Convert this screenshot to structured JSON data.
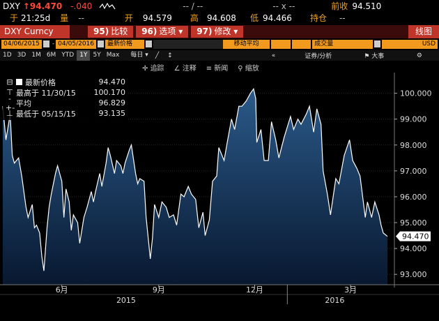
{
  "header": {
    "symbol": "DXY",
    "last": "94.470",
    "change": "-.040",
    "time_label": "于",
    "time": "21:25d",
    "volume_label": "量",
    "volume": "--",
    "prev_close_label": "前收",
    "prev_close": "94.510",
    "open_label": "开",
    "open": "94.579",
    "high_label": "高",
    "high": "94.608",
    "low_label": "低",
    "low": "94.466",
    "position_label": "持仓",
    "position": "--",
    "dash1": "-- / --",
    "dash2": "-- x --"
  },
  "titlebar": {
    "ticker": "DXY Curncy",
    "btn1_num": "95)",
    "btn1": "比较",
    "btn2_num": "96)",
    "btn2": "选项",
    "btn3_num": "97)",
    "btn3": "修改",
    "right": "线图"
  },
  "params": {
    "start": "04/06/2015",
    "end": "04/05/2016",
    "field": "最新价格",
    "ma": "移动平均",
    "vol": "成交量",
    "currency": "USD"
  },
  "ranges": [
    "1D",
    "3D",
    "1M",
    "6M",
    "YTD",
    "1Y",
    "5Y",
    "Max"
  ],
  "selected_range": "1Y",
  "freq": "每日",
  "tools_row": {
    "collapse": "«",
    "securities": "证券/分析",
    "events": "大事"
  },
  "chart_tools": [
    "追踪",
    "注释",
    "新闻",
    "缩放"
  ],
  "legend": {
    "last_label": "最新价格",
    "last_value": "94.470",
    "high_label": "最高于 11/30/15",
    "high_value": "100.170",
    "avg_label": "平均",
    "avg_value": "96.829",
    "low_label": "最低于 05/15/15",
    "low_value": "93.135"
  },
  "chart_data": {
    "type": "area",
    "title": "",
    "xlabel": "",
    "ylabel": "",
    "ylim": [
      92.6,
      100.8
    ],
    "y_ticks": [
      93.0,
      94.0,
      95.0,
      96.0,
      97.0,
      98.0,
      99.0,
      100.0
    ],
    "y_tick_labels": [
      "93.000",
      "94.000",
      "95.000",
      "96.000",
      "97.000",
      "98.000",
      "99.000",
      "100.000"
    ],
    "x_month_labels": [
      {
        "label": "6月",
        "date": "2015-06-01"
      },
      {
        "label": "9月",
        "date": "2015-09-01"
      },
      {
        "label": "12月",
        "date": "2015-12-01"
      },
      {
        "label": "3月",
        "date": "2016-03-01"
      }
    ],
    "x_year_labels": [
      {
        "label": "2015",
        "date": "2015-08-01"
      },
      {
        "label": "2016",
        "date": "2016-02-15"
      }
    ],
    "current_value_label": "94.470",
    "colors": {
      "fill_top": "#2b5a8a",
      "fill_bottom": "#081830",
      "line": "#ffffff"
    },
    "series": [
      {
        "x": [
          "2015-04-06",
          "2015-04-09",
          "2015-04-13",
          "2015-04-15",
          "2015-04-17",
          "2015-04-21",
          "2015-04-24",
          "2015-04-28",
          "2015-04-30",
          "2015-05-04",
          "2015-05-06",
          "2015-05-08",
          "2015-05-11",
          "2015-05-13",
          "2015-05-15",
          "2015-05-18",
          "2015-05-20",
          "2015-05-22",
          "2015-05-26",
          "2015-05-28",
          "2015-06-01",
          "2015-06-03",
          "2015-06-05",
          "2015-06-08",
          "2015-06-10",
          "2015-06-12",
          "2015-06-16",
          "2015-06-18",
          "2015-06-22",
          "2015-06-25",
          "2015-06-29",
          "2015-07-01",
          "2015-07-03",
          "2015-07-07",
          "2015-07-09",
          "2015-07-13",
          "2015-07-15",
          "2015-07-17",
          "2015-07-21",
          "2015-07-23",
          "2015-07-27",
          "2015-07-29",
          "2015-07-31",
          "2015-08-04",
          "2015-08-06",
          "2015-08-10",
          "2015-08-12",
          "2015-08-14",
          "2015-08-18",
          "2015-08-20",
          "2015-08-24",
          "2015-08-26",
          "2015-08-28",
          "2015-09-01",
          "2015-09-04",
          "2015-09-08",
          "2015-09-11",
          "2015-09-15",
          "2015-09-18",
          "2015-09-22",
          "2015-09-25",
          "2015-09-29",
          "2015-10-02",
          "2015-10-06",
          "2015-10-09",
          "2015-10-13",
          "2015-10-15",
          "2015-10-19",
          "2015-10-22",
          "2015-10-26",
          "2015-10-28",
          "2015-11-02",
          "2015-11-05",
          "2015-11-09",
          "2015-11-12",
          "2015-11-16",
          "2015-11-19",
          "2015-11-23",
          "2015-11-27",
          "2015-11-30",
          "2015-12-02",
          "2015-12-03",
          "2015-12-07",
          "2015-12-10",
          "2015-12-14",
          "2015-12-17",
          "2015-12-21",
          "2015-12-24",
          "2015-12-29",
          "2016-01-04",
          "2016-01-07",
          "2016-01-11",
          "2016-01-14",
          "2016-01-19",
          "2016-01-22",
          "2016-01-26",
          "2016-01-29",
          "2016-02-02",
          "2016-02-04",
          "2016-02-08",
          "2016-02-11",
          "2016-02-16",
          "2016-02-19",
          "2016-02-24",
          "2016-02-29",
          "2016-03-03",
          "2016-03-07",
          "2016-03-10",
          "2016-03-15",
          "2016-03-17",
          "2016-03-21",
          "2016-03-24",
          "2016-03-28",
          "2016-03-30",
          "2016-04-01",
          "2016-04-05"
        ],
        "y": [
          99.5,
          98.2,
          99.2,
          97.6,
          97.3,
          97.5,
          96.8,
          95.6,
          95.2,
          95.7,
          94.8,
          94.9,
          94.6,
          93.7,
          93.135,
          94.8,
          95.6,
          96.1,
          96.9,
          97.2,
          96.6,
          95.2,
          96.3,
          95.8,
          94.7,
          95.3,
          95.0,
          94.2,
          95.2,
          95.6,
          96.2,
          95.8,
          96.2,
          96.9,
          96.4,
          97.3,
          97.9,
          97.6,
          96.9,
          97.4,
          97.2,
          96.9,
          97.3,
          97.8,
          98.0,
          96.9,
          96.5,
          96.7,
          96.6,
          95.2,
          93.6,
          94.4,
          95.7,
          95.2,
          95.8,
          95.6,
          95.2,
          95.3,
          94.9,
          96.1,
          96.0,
          96.4,
          96.1,
          95.9,
          94.8,
          95.4,
          94.5,
          95.1,
          96.6,
          96.8,
          97.9,
          97.4,
          98.1,
          99.0,
          98.6,
          99.5,
          99.5,
          99.7,
          100.0,
          100.17,
          99.8,
          98.1,
          98.6,
          97.4,
          97.4,
          98.9,
          98.2,
          97.5,
          98.3,
          99.1,
          98.6,
          99.0,
          98.8,
          99.2,
          99.5,
          98.5,
          99.4,
          98.8,
          97.0,
          96.1,
          95.3,
          96.7,
          96.5,
          97.6,
          98.2,
          97.4,
          97.1,
          96.8,
          95.2,
          95.8,
          95.2,
          95.8,
          95.3,
          94.9,
          94.6,
          94.47
        ]
      }
    ]
  }
}
